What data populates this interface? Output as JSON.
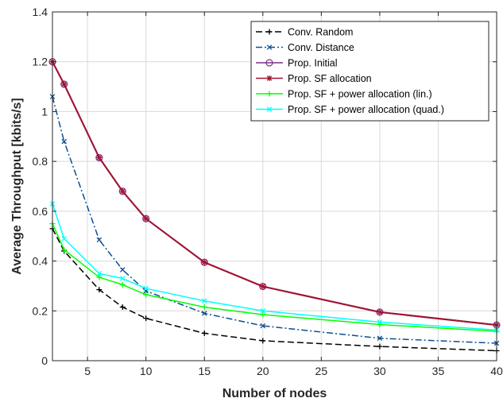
{
  "chart_data": {
    "type": "line",
    "title": "",
    "xlabel": "Number of nodes",
    "ylabel": "Average Throughput [kbits/s]",
    "xlim": [
      2,
      40
    ],
    "ylim": [
      0,
      1.4
    ],
    "xticks": [
      5,
      10,
      15,
      20,
      25,
      30,
      35,
      40
    ],
    "yticks": [
      0,
      0.2,
      0.4,
      0.6,
      0.8,
      1,
      1.2,
      1.4
    ],
    "ytick_labels": [
      "0",
      "0.2",
      "0.4",
      "0.6",
      "0.8",
      "1",
      "1.2",
      "1.4"
    ],
    "grid": true,
    "legend_position": "top-right",
    "x": [
      2,
      3,
      6,
      8,
      10,
      15,
      20,
      30,
      40
    ],
    "series": [
      {
        "name": "Conv. Random",
        "color": "#000000",
        "dash": "8 4",
        "marker": "plus",
        "values": [
          0.53,
          0.44,
          0.285,
          0.215,
          0.17,
          0.11,
          0.08,
          0.057,
          0.04
        ]
      },
      {
        "name": "Conv. Distance",
        "color": "#0e4f8f",
        "dash": "8 3 2 3",
        "marker": "x",
        "values": [
          1.06,
          0.88,
          0.485,
          0.365,
          0.28,
          0.19,
          0.14,
          0.09,
          0.07
        ]
      },
      {
        "name": "Prop. Initial",
        "color": "#7e2f8e",
        "dash": "",
        "marker": "circle",
        "values": [
          1.2,
          1.11,
          0.815,
          0.68,
          0.57,
          0.395,
          0.298,
          0.195,
          0.143
        ]
      },
      {
        "name": "Prop. SF allocation",
        "color": "#a2142f",
        "dash": "",
        "marker": "star",
        "values": [
          1.2,
          1.11,
          0.815,
          0.68,
          0.57,
          0.395,
          0.298,
          0.195,
          0.143
        ]
      },
      {
        "name": "Prop. SF + power allocation (lin.)",
        "color": "#00ff00",
        "dash": "",
        "marker": "plus",
        "values": [
          0.55,
          0.445,
          0.335,
          0.305,
          0.265,
          0.215,
          0.185,
          0.145,
          0.118
        ]
      },
      {
        "name": "Prop. SF + power allocation (quad.)",
        "color": "#00ffff",
        "dash": "",
        "marker": "x",
        "values": [
          0.63,
          0.49,
          0.35,
          0.33,
          0.29,
          0.24,
          0.2,
          0.155,
          0.123
        ]
      }
    ]
  }
}
